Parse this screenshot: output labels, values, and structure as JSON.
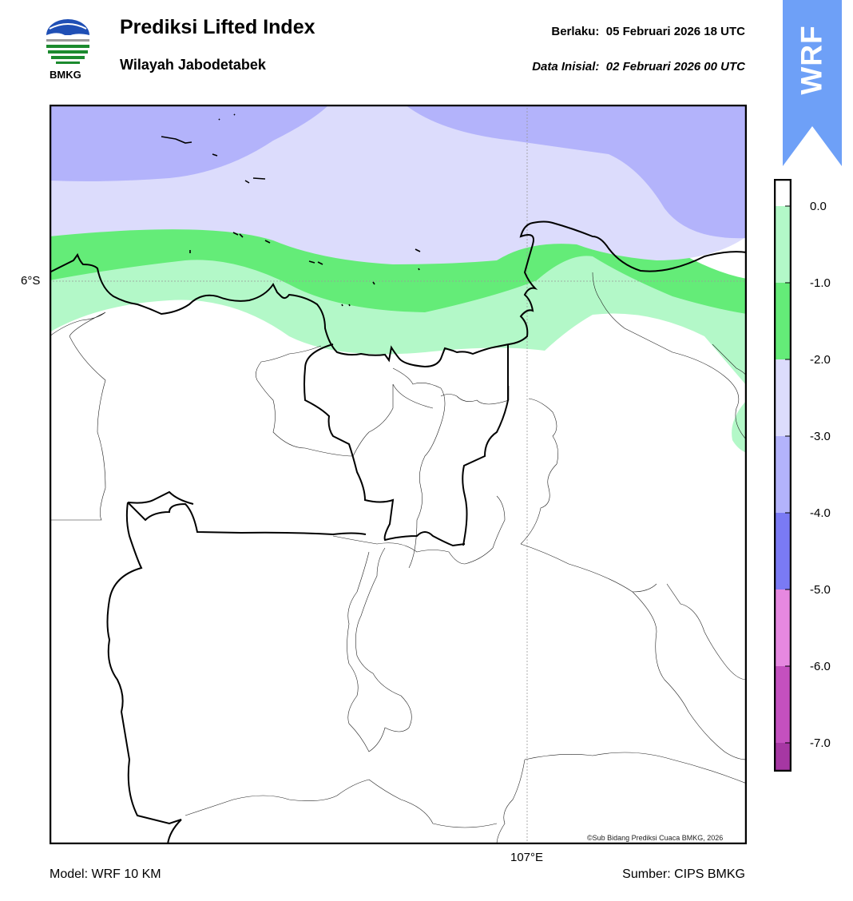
{
  "header": {
    "title": "Prediksi Lifted Index",
    "subtitle": "Wilayah Jabodetabek",
    "valid_label": "Berlaku:",
    "valid_time": "05 Februari 2026 18 UTC",
    "init_label": "Data Inisial:",
    "init_time": "02 Februari 2026 00 UTC"
  },
  "logo": {
    "text": "BMKG",
    "icon": "bmkg-logo-icon"
  },
  "badge": {
    "text": "WRF",
    "color": "#6ea0f7"
  },
  "map": {
    "lat_label": "6°S",
    "lon_label": "107°E",
    "credit": "©Sub Bidang Prediksi Cuaca BMKG, 2026"
  },
  "colorbar": {
    "ticks": [
      "0.0",
      "-1.0",
      "-2.0",
      "-3.0",
      "-4.0",
      "-5.0",
      "-6.0",
      "-7.0"
    ],
    "colors": [
      "#ffffff",
      "#b3f8c8",
      "#64ec78",
      "#dcdcfc",
      "#b3b3fb",
      "#7a7af4",
      "#e688e0",
      "#c450bf",
      "#a637a3",
      "#882888"
    ]
  },
  "footer": {
    "model": "Model: WRF 10 KM",
    "source": "Sumber: CIPS BMKG"
  }
}
